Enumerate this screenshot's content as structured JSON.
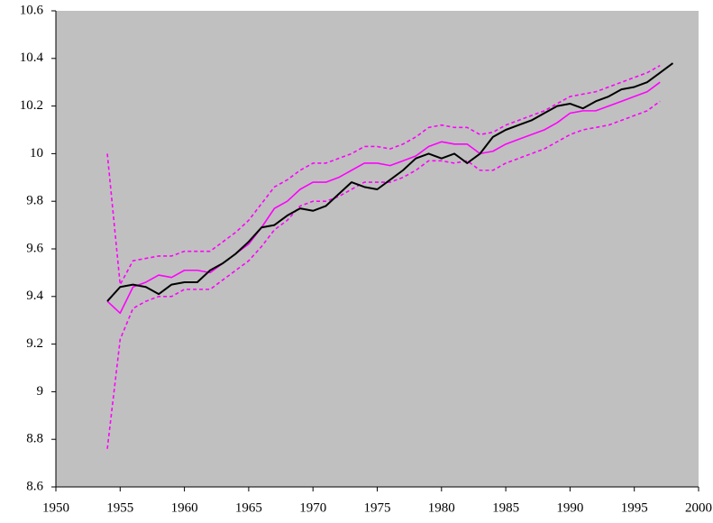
{
  "chart_data": {
    "type": "line",
    "x": [
      1954,
      1955,
      1956,
      1957,
      1958,
      1959,
      1960,
      1961,
      1962,
      1963,
      1964,
      1965,
      1966,
      1967,
      1968,
      1969,
      1970,
      1971,
      1972,
      1973,
      1974,
      1975,
      1976,
      1977,
      1978,
      1979,
      1980,
      1981,
      1982,
      1983,
      1984,
      1985,
      1986,
      1987,
      1988,
      1989,
      1990,
      1991,
      1992,
      1993,
      1994,
      1995,
      1996,
      1997,
      1998
    ],
    "series": [
      {
        "color": "#ff00ff",
        "line_style": "dashed",
        "values": [
          10.0,
          9.45,
          9.55,
          9.56,
          9.57,
          9.57,
          9.59,
          9.59,
          9.59,
          9.63,
          9.67,
          9.72,
          9.79,
          9.86,
          9.89,
          9.93,
          9.96,
          9.96,
          9.98,
          10.0,
          10.03,
          10.03,
          10.02,
          10.04,
          10.07,
          10.11,
          10.12,
          10.11,
          10.11,
          10.08,
          10.09,
          10.12,
          10.14,
          10.16,
          10.18,
          10.21,
          10.24,
          10.25,
          10.26,
          10.28,
          10.3,
          10.32,
          10.34,
          10.37,
          null
        ]
      },
      {
        "color": "#ff00ff",
        "line_style": "dashed",
        "values": [
          8.76,
          9.22,
          9.35,
          9.38,
          9.4,
          9.4,
          9.43,
          9.43,
          9.43,
          9.47,
          9.51,
          9.55,
          9.61,
          9.68,
          9.72,
          9.78,
          9.8,
          9.8,
          9.82,
          9.85,
          9.88,
          9.88,
          9.88,
          9.9,
          9.93,
          9.97,
          9.97,
          9.96,
          9.97,
          9.93,
          9.93,
          9.96,
          9.98,
          10.0,
          10.02,
          10.05,
          10.08,
          10.1,
          10.11,
          10.12,
          10.14,
          10.16,
          10.18,
          10.22,
          null
        ]
      },
      {
        "color": "#ff00ff",
        "line_style": "solid",
        "values": [
          9.38,
          9.33,
          9.44,
          9.46,
          9.49,
          9.48,
          9.51,
          9.51,
          9.5,
          9.54,
          9.58,
          9.62,
          9.69,
          9.77,
          9.8,
          9.85,
          9.88,
          9.88,
          9.9,
          9.93,
          9.96,
          9.96,
          9.95,
          9.97,
          9.99,
          10.03,
          10.05,
          10.04,
          10.04,
          10.0,
          10.01,
          10.04,
          10.06,
          10.08,
          10.1,
          10.13,
          10.17,
          10.18,
          10.18,
          10.2,
          10.22,
          10.24,
          10.26,
          10.3,
          null
        ]
      },
      {
        "color": "#000000",
        "line_style": "solid",
        "values": [
          9.38,
          9.44,
          9.45,
          9.44,
          9.41,
          9.45,
          9.46,
          9.46,
          9.51,
          9.54,
          9.58,
          9.63,
          9.69,
          9.7,
          9.74,
          9.77,
          9.76,
          9.78,
          9.83,
          9.88,
          9.86,
          9.85,
          9.89,
          9.93,
          9.98,
          10.0,
          9.98,
          10.0,
          9.96,
          10.0,
          10.07,
          10.1,
          10.12,
          10.14,
          10.17,
          10.2,
          10.21,
          10.19,
          10.22,
          10.24,
          10.27,
          10.28,
          10.3,
          10.34,
          10.38
        ]
      }
    ],
    "xlim": [
      1950,
      2000
    ],
    "xticks": [
      1950,
      1955,
      1960,
      1965,
      1970,
      1975,
      1980,
      1985,
      1990,
      1995,
      2000
    ],
    "ylim": [
      8.6,
      10.6
    ],
    "yticks": [
      8.6,
      8.8,
      9,
      9.2,
      9.4,
      9.6,
      9.8,
      10,
      10.2,
      10.4,
      10.6
    ],
    "grid": false,
    "plot_background": "#c0c0c0"
  }
}
